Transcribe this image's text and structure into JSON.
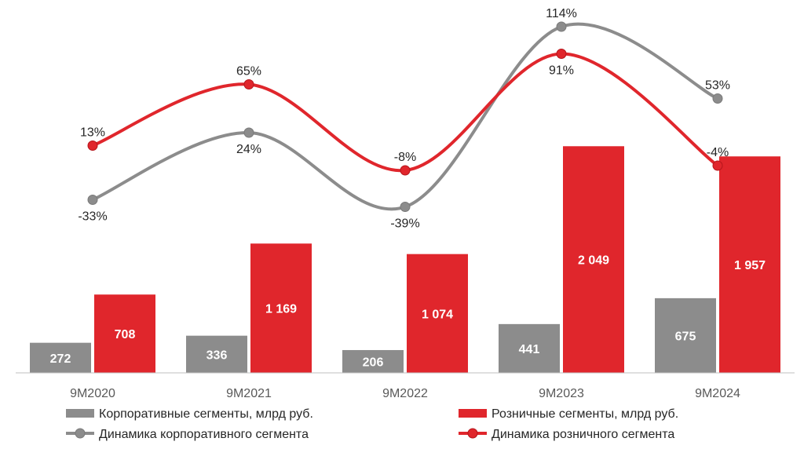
{
  "chart_data": {
    "type": "bar",
    "categories": [
      "9M2020",
      "9M2021",
      "9M2022",
      "9M2023",
      "9M2024"
    ],
    "series": [
      {
        "name": "Корпоративные сегменты, млрд руб.",
        "kind": "bar",
        "color": "#8c8c8c",
        "values": [
          272,
          336,
          206,
          441,
          675
        ],
        "labels": [
          "272",
          "336",
          "206",
          "441",
          "675"
        ]
      },
      {
        "name": "Розничные сегменты, млрд руб.",
        "kind": "bar",
        "color": "#e0262c",
        "values": [
          708,
          1169,
          1074,
          2049,
          1957
        ],
        "labels": [
          "708",
          "1 169",
          "1 074",
          "2 049",
          "1 957"
        ]
      },
      {
        "name": "Динамика корпоративного сегмента",
        "kind": "line",
        "color": "#8c8c8c",
        "values": [
          -33,
          24,
          -39,
          114,
          53
        ],
        "labels": [
          "-33%",
          "24%",
          "-39%",
          "114%",
          "53%"
        ],
        "label_pos": [
          "below",
          "below",
          "below",
          "above",
          "above"
        ]
      },
      {
        "name": "Динамика розничного сегмента",
        "kind": "line",
        "color": "#e0262c",
        "values": [
          13,
          65,
          -8,
          91,
          -4
        ],
        "labels": [
          "13%",
          "65%",
          "-8%",
          "91%",
          "-4%"
        ],
        "label_pos": [
          "above",
          "above",
          "above",
          "below",
          "above"
        ]
      }
    ],
    "bar_ylim": [
      0,
      2200
    ],
    "line_ylim": [
      -70,
      130
    ],
    "smooth_lines": true,
    "grid": false,
    "legend_position": "bottom"
  }
}
